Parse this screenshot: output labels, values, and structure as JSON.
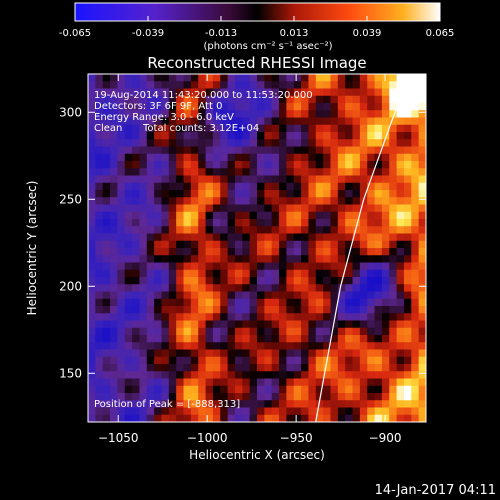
{
  "colorbar": {
    "tick_labels": [
      "-0.065",
      "-0.039",
      "-0.013",
      "0.013",
      "0.039",
      "0.065"
    ],
    "tick_values": [
      -0.065,
      -0.039,
      -0.013,
      0.013,
      0.039,
      0.065
    ],
    "range": [
      -0.065,
      0.065
    ],
    "unit_label": "(photons cm⁻² s⁻¹ asec⁻²)"
  },
  "chart_data": {
    "type": "heatmap",
    "title": "Reconstructed RHESSI Image",
    "xlabel": "Heliocentric X (arcsec)",
    "ylabel": "Heliocentric Y (arcsec)",
    "xlim": [
      -1067,
      -877
    ],
    "ylim": [
      122,
      322
    ],
    "x_ticks": [
      -1050,
      -1000,
      -950,
      -900
    ],
    "x_tick_labels": [
      "−1050",
      "−1000",
      "−950",
      "−900"
    ],
    "y_ticks": [
      150,
      200,
      250,
      300
    ],
    "y_tick_labels": [
      "150",
      "200",
      "250",
      "300"
    ],
    "annotations": {
      "time_range": "19-Aug-2014 11:43:20.000 to 11:53:20.000",
      "detectors": "Detectors: 3F 6F 9F, Att 0",
      "energy_range": "Energy Range: 3.0 - 6.0 keV",
      "clean": "Clean",
      "total_counts": "Total counts: 3.12E+04",
      "peak_position": "Position of Peak = [-888,313]"
    },
    "peak": [
      -888,
      313
    ],
    "limb_curve": {
      "x": [
        -939,
        -925,
        -912,
        -898,
        -888
      ],
      "y": [
        122,
        200,
        250,
        290,
        318
      ]
    },
    "grid": false,
    "colormap": [
      "#1a14c8",
      "#3a28b8",
      "#6a2aa8",
      "#000000",
      "#d22a10",
      "#f0701a",
      "#ffd020",
      "#ffffff"
    ]
  },
  "timestamp": "14-Jan-2017 04:11"
}
